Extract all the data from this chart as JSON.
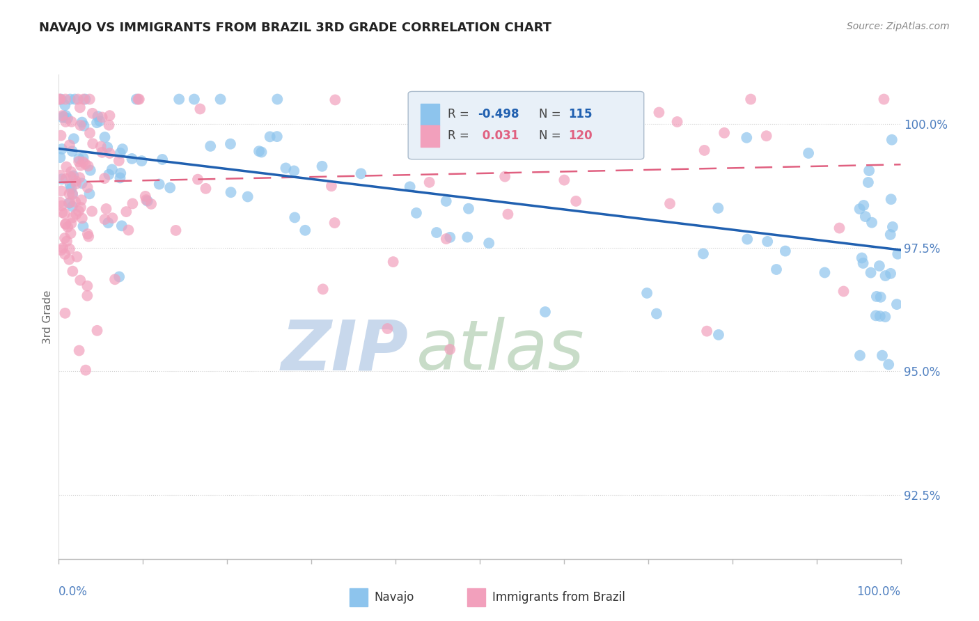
{
  "title": "NAVAJO VS IMMIGRANTS FROM BRAZIL 3RD GRADE CORRELATION CHART",
  "source_text": "Source: ZipAtlas.com",
  "ylabel": "3rd Grade",
  "ytick_values": [
    92.5,
    95.0,
    97.5,
    100.0
  ],
  "xmin": 0.0,
  "xmax": 1.0,
  "ymin": 91.2,
  "ymax": 101.0,
  "navajo_color": "#8DC4ED",
  "brazil_color": "#F2A0BC",
  "trend_blue_color": "#2060B0",
  "trend_pink_color": "#E06080",
  "background_color": "#FFFFFF",
  "legend_box_color": "#E8F0F8",
  "legend_r_blue": "-0.498",
  "legend_n_blue": "115",
  "legend_r_pink": "0.031",
  "legend_n_pink": "120",
  "blue_line_y0": 99.5,
  "blue_line_y1": 97.45,
  "pink_line_y0": 98.82,
  "pink_line_y1": 99.18,
  "watermark_zip_color": "#C8D8EC",
  "watermark_atlas_color": "#C8DCC8",
  "ytick_color": "#5080C0",
  "xtick_color": "#5080C0",
  "grid_color": "#CCCCCC",
  "ylabel_color": "#666666",
  "title_color": "#222222",
  "source_color": "#888888"
}
